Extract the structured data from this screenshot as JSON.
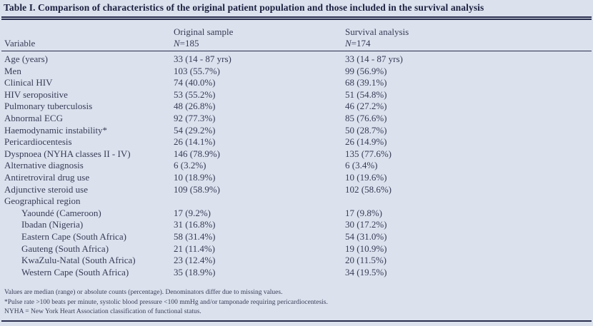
{
  "table": {
    "title": "Table I. Comparison of characteristics of the original patient population and those included in the survival analysis",
    "columns": {
      "variable": "Variable",
      "original": {
        "label": "Original sample",
        "n_italic": "N",
        "n_rest": "=185"
      },
      "survival": {
        "label": "Survival analysis",
        "n_italic": "N",
        "n_rest": "=174"
      }
    },
    "rows": [
      {
        "label": "Age (years)",
        "indent": false,
        "original": "33 (14 - 87 yrs)",
        "survival": "33 (14 - 87 yrs)"
      },
      {
        "label": "Men",
        "indent": false,
        "original": "103 (55.7%)",
        "survival": "99 (56.9%)"
      },
      {
        "label": "Clinical HIV",
        "indent": false,
        "original": "74 (40.0%)",
        "survival": "68 (39.1%)"
      },
      {
        "label": "HIV seropositive",
        "indent": false,
        "original": "53 (55.2%)",
        "survival": "51 (54.8%)"
      },
      {
        "label": "Pulmonary tuberculosis",
        "indent": false,
        "original": "48 (26.8%)",
        "survival": "46 (27.2%)"
      },
      {
        "label": "Abnormal ECG",
        "indent": false,
        "original": "92 (77.3%)",
        "survival": "85 (76.6%)"
      },
      {
        "label": "Haemodynamic instability*",
        "indent": false,
        "original": "54 (29.2%)",
        "survival": "50 (28.7%)"
      },
      {
        "label": "Pericardiocentesis",
        "indent": false,
        "original": "26 (14.1%)",
        "survival": "26 (14.9%)"
      },
      {
        "label": "Dyspnoea (NYHA classes II - IV)",
        "indent": false,
        "original": "146 (78.9%)",
        "survival": "135 (77.6%)"
      },
      {
        "label": "Alternative diagnosis",
        "indent": false,
        "original": "6 (3.2%)",
        "survival": "6  (3.4%)"
      },
      {
        "label": "Antiretroviral drug use",
        "indent": false,
        "original": "10 (18.9%)",
        "survival": "10 (19.6%)"
      },
      {
        "label": "Adjunctive steroid use",
        "indent": false,
        "original": "109 (58.9%)",
        "survival": "102 (58.6%)"
      },
      {
        "label": "Geographical region",
        "indent": false,
        "original": "",
        "survival": ""
      },
      {
        "label": "Yaoundé (Cameroon)",
        "indent": true,
        "original": "17 (9.2%)",
        "survival": "17 (9.8%)"
      },
      {
        "label": "Ibadan (Nigeria)",
        "indent": true,
        "original": "31 (16.8%)",
        "survival": "30 (17.2%)"
      },
      {
        "label": "Eastern Cape (South Africa)",
        "indent": true,
        "original": "58 (31.4%)",
        "survival": "54 (31.0%)"
      },
      {
        "label": "Gauteng (South Africa)",
        "indent": true,
        "original": "21 (11.4%)",
        "survival": "19 (10.9%)"
      },
      {
        "label": "KwaZulu-Natal (South Africa)",
        "indent": true,
        "original": "23 (12.4%)",
        "survival": "20 (11.5%)"
      },
      {
        "label": "Western Cape (South Africa)",
        "indent": true,
        "original": "35 (18.9%)",
        "survival": "34 (19.5%)"
      }
    ],
    "footnotes": [
      "Values are median (range) or absolute counts (percentage). Denominators differ due to missing values.",
      "*Pulse rate >100 beats per minute, systolic blood pressure <100 mmHg and/or tamponade requiring pericardiocentesis.",
      "NYHA = New York Heart Association classification of functional status."
    ]
  },
  "colors": {
    "background": "#dbe2ee",
    "text": "#383b55",
    "title_text": "#1d2140",
    "rule": "#2a2e4e"
  }
}
